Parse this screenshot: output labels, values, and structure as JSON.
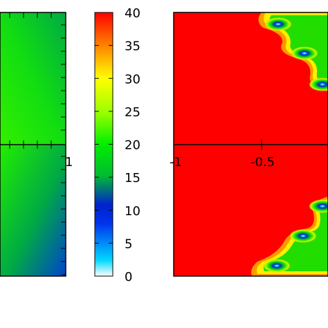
{
  "chart_data": [
    {
      "type": "heatmap",
      "panel": "left (cropped)",
      "x_tick_labels": [
        "1"
      ],
      "y_tick_labels": [],
      "colors": {
        "frame": "#000000"
      }
    },
    {
      "type": "colorbar",
      "range": [
        0,
        40
      ],
      "ticks": [
        0,
        5,
        10,
        15,
        20,
        25,
        30,
        35,
        40
      ],
      "tick_labels": [
        "0",
        "5",
        "10",
        "15",
        "20",
        "25",
        "30",
        "35",
        "40"
      ],
      "colormap": [
        "#ffffff",
        "#00d8ff",
        "#0022dd",
        "#00cc22",
        "#00ff00",
        "#aaff00",
        "#ffff00",
        "#ff8800",
        "#ff0000"
      ]
    },
    {
      "type": "heatmap",
      "panel": "right",
      "x_tick_labels": [
        "-1",
        "-0.5"
      ],
      "background_value": 40,
      "minima_count": 6,
      "colors": {
        "background": "#ff0000",
        "frame": "#000000"
      }
    }
  ]
}
